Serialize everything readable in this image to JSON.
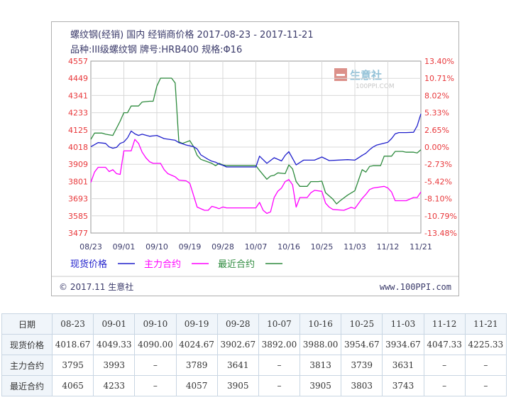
{
  "chart_data": {
    "type": "line",
    "title": "螺纹钢(经销) 国内 经销商价格 2017-08-23 - 2017-11-21",
    "subtitle": "品种:III级螺纹钢 牌号:HRB400 规格:Φ16",
    "watermark": {
      "name": "生意社",
      "url": "100PPI.COM"
    },
    "footer_left": "© 2017.11 生意社",
    "footer_right": "www.100PPI.com",
    "x_ticks": [
      "08/23",
      "09/01",
      "09/10",
      "09/19",
      "09/28",
      "10/07",
      "10/16",
      "10/25",
      "11/03",
      "11/12",
      "11/21"
    ],
    "y_left_ticks": [
      "4557",
      "4449",
      "4341",
      "4233",
      "4125",
      "4018",
      "3909",
      "3801",
      "3693",
      "3585",
      "3477"
    ],
    "y_right_ticks": [
      "13.40%",
      "10.71%",
      "8.02%",
      "5.33%",
      "2.65%",
      "0.00%",
      "-2.73%",
      "-5.42%",
      "-8.10%",
      "-10.79%",
      "-13.48%"
    ],
    "ylim": [
      3477,
      4557
    ],
    "xlim": [
      "2017-08-23",
      "2017-11-21"
    ],
    "grid": true,
    "legend": {
      "position": "bottom"
    },
    "colors": {
      "spot": "#2020cc",
      "main": "#ff00ff",
      "near": "#2e8b3e",
      "left_axis": "#e8373a",
      "right_axis": "#e8373a"
    },
    "series": [
      {
        "name": "现货价格",
        "color": "#2020cc",
        "points": [
          [
            "2017-08-23",
            4018.67
          ],
          [
            "2017-08-25",
            4045
          ],
          [
            "2017-08-27",
            4040
          ],
          [
            "2017-08-28",
            4018
          ],
          [
            "2017-08-29",
            4010
          ],
          [
            "2017-08-30",
            4015
          ],
          [
            "2017-08-31",
            4040
          ],
          [
            "2017-09-01",
            4049.33
          ],
          [
            "2017-09-02",
            4075
          ],
          [
            "2017-09-03",
            4118
          ],
          [
            "2017-09-04",
            4100
          ],
          [
            "2017-09-05",
            4090
          ],
          [
            "2017-09-06",
            4098
          ],
          [
            "2017-09-08",
            4085
          ],
          [
            "2017-09-10",
            4090
          ],
          [
            "2017-09-12",
            4070
          ],
          [
            "2017-09-15",
            4060
          ],
          [
            "2017-09-16",
            4045
          ],
          [
            "2017-09-18",
            4030
          ],
          [
            "2017-09-19",
            4024.67
          ],
          [
            "2017-09-20",
            4020
          ],
          [
            "2017-09-21",
            4005
          ],
          [
            "2017-09-22",
            3968
          ],
          [
            "2017-09-24",
            3940
          ],
          [
            "2017-09-25",
            3928
          ],
          [
            "2017-09-26",
            3922
          ],
          [
            "2017-09-27",
            3910
          ],
          [
            "2017-09-28",
            3902.67
          ],
          [
            "2017-09-29",
            3892
          ],
          [
            "2017-10-07",
            3892
          ],
          [
            "2017-10-08",
            3960
          ],
          [
            "2017-10-10",
            3915
          ],
          [
            "2017-10-12",
            3950
          ],
          [
            "2017-10-14",
            3930
          ],
          [
            "2017-10-15",
            3965
          ],
          [
            "2017-10-16",
            3988
          ],
          [
            "2017-10-18",
            3905
          ],
          [
            "2017-10-20",
            3935
          ],
          [
            "2017-10-23",
            3935
          ],
          [
            "2017-10-25",
            3954.67
          ],
          [
            "2017-10-27",
            3932
          ],
          [
            "2017-11-01",
            3938
          ],
          [
            "2017-11-03",
            3934.67
          ],
          [
            "2017-11-05",
            3965
          ],
          [
            "2017-11-06",
            3978
          ],
          [
            "2017-11-07",
            4000
          ],
          [
            "2017-11-08",
            4018
          ],
          [
            "2017-11-09",
            4030
          ],
          [
            "2017-11-12",
            4047.33
          ],
          [
            "2017-11-13",
            4070
          ],
          [
            "2017-11-14",
            4100
          ],
          [
            "2017-11-15",
            4108
          ],
          [
            "2017-11-17",
            4108
          ],
          [
            "2017-11-19",
            4110
          ],
          [
            "2017-11-20",
            4150
          ],
          [
            "2017-11-21",
            4225.33
          ]
        ]
      },
      {
        "name": "主力合约",
        "color": "#ff00ff",
        "points": [
          [
            "2017-08-23",
            3795
          ],
          [
            "2017-08-24",
            3860
          ],
          [
            "2017-08-25",
            3890
          ],
          [
            "2017-08-27",
            3890
          ],
          [
            "2017-08-28",
            3863
          ],
          [
            "2017-08-29",
            3875
          ],
          [
            "2017-08-30",
            3850
          ],
          [
            "2017-08-31",
            3845
          ],
          [
            "2017-09-01",
            3993
          ],
          [
            "2017-09-03",
            3993
          ],
          [
            "2017-09-04",
            4065
          ],
          [
            "2017-09-05",
            4040
          ],
          [
            "2017-09-06",
            3985
          ],
          [
            "2017-09-07",
            3950
          ],
          [
            "2017-09-08",
            3925
          ],
          [
            "2017-09-09",
            3915
          ],
          [
            "2017-09-11",
            3915
          ],
          [
            "2017-09-12",
            3875
          ],
          [
            "2017-09-13",
            3850
          ],
          [
            "2017-09-15",
            3830
          ],
          [
            "2017-09-16",
            3810
          ],
          [
            "2017-09-18",
            3805
          ],
          [
            "2017-09-19",
            3789
          ],
          [
            "2017-09-21",
            3640
          ],
          [
            "2017-09-23",
            3620
          ],
          [
            "2017-09-24",
            3620
          ],
          [
            "2017-09-25",
            3645
          ],
          [
            "2017-09-26",
            3638
          ],
          [
            "2017-09-27",
            3630
          ],
          [
            "2017-09-28",
            3641
          ],
          [
            "2017-09-29",
            3635
          ],
          [
            "2017-10-07",
            3635
          ],
          [
            "2017-10-08",
            3670
          ],
          [
            "2017-10-09",
            3620
          ],
          [
            "2017-10-10",
            3600
          ],
          [
            "2017-10-11",
            3610
          ],
          [
            "2017-10-12",
            3700
          ],
          [
            "2017-10-13",
            3740
          ],
          [
            "2017-10-14",
            3760
          ],
          [
            "2017-10-15",
            3800
          ],
          [
            "2017-10-16",
            3813
          ],
          [
            "2017-10-17",
            3780
          ],
          [
            "2017-10-18",
            3640
          ],
          [
            "2017-10-19",
            3700
          ],
          [
            "2017-10-21",
            3700
          ],
          [
            "2017-10-22",
            3730
          ],
          [
            "2017-10-23",
            3745
          ],
          [
            "2017-10-25",
            3739
          ],
          [
            "2017-10-26",
            3665
          ],
          [
            "2017-10-27",
            3640
          ],
          [
            "2017-10-28",
            3625
          ],
          [
            "2017-10-31",
            3620
          ],
          [
            "2017-11-02",
            3638
          ],
          [
            "2017-11-03",
            3631
          ],
          [
            "2017-11-05",
            3695
          ],
          [
            "2017-11-06",
            3720
          ],
          [
            "2017-11-07",
            3750
          ],
          [
            "2017-11-08",
            3760
          ],
          [
            "2017-11-11",
            3770
          ],
          [
            "2017-11-12",
            3760
          ],
          [
            "2017-11-13",
            3735
          ],
          [
            "2017-11-14",
            3680
          ],
          [
            "2017-11-17",
            3680
          ],
          [
            "2017-11-19",
            3700
          ],
          [
            "2017-11-20",
            3700
          ],
          [
            "2017-11-21",
            3735
          ]
        ]
      },
      {
        "name": "最近合约",
        "color": "#2e8b3e",
        "points": [
          [
            "2017-08-23",
            4065
          ],
          [
            "2017-08-24",
            4105
          ],
          [
            "2017-08-26",
            4105
          ],
          [
            "2017-08-27",
            4098
          ],
          [
            "2017-08-29",
            4090
          ],
          [
            "2017-08-31",
            4180
          ],
          [
            "2017-09-01",
            4233
          ],
          [
            "2017-09-02",
            4233
          ],
          [
            "2017-09-03",
            4275
          ],
          [
            "2017-09-05",
            4275
          ],
          [
            "2017-09-06",
            4300
          ],
          [
            "2017-09-08",
            4305
          ],
          [
            "2017-09-09",
            4305
          ],
          [
            "2017-09-10",
            4400
          ],
          [
            "2017-09-11",
            4450
          ],
          [
            "2017-09-14",
            4450
          ],
          [
            "2017-09-15",
            4420
          ],
          [
            "2017-09-16",
            4050
          ],
          [
            "2017-09-17",
            4040
          ],
          [
            "2017-09-19",
            4057
          ],
          [
            "2017-09-20",
            4020
          ],
          [
            "2017-09-21",
            3965
          ],
          [
            "2017-09-22",
            3940
          ],
          [
            "2017-09-25",
            3915
          ],
          [
            "2017-09-26",
            3900
          ],
          [
            "2017-09-27",
            3915
          ],
          [
            "2017-09-28",
            3905
          ],
          [
            "2017-09-29",
            3900
          ],
          [
            "2017-10-07",
            3900
          ],
          [
            "2017-10-08",
            3870
          ],
          [
            "2017-10-10",
            3815
          ],
          [
            "2017-10-11",
            3835
          ],
          [
            "2017-10-12",
            3840
          ],
          [
            "2017-10-13",
            3855
          ],
          [
            "2017-10-15",
            3850
          ],
          [
            "2017-10-16",
            3905
          ],
          [
            "2017-10-17",
            3880
          ],
          [
            "2017-10-18",
            3800
          ],
          [
            "2017-10-19",
            3770
          ],
          [
            "2017-10-21",
            3770
          ],
          [
            "2017-10-22",
            3800
          ],
          [
            "2017-10-24",
            3800
          ],
          [
            "2017-10-25",
            3803
          ],
          [
            "2017-10-26",
            3730
          ],
          [
            "2017-10-28",
            3690
          ],
          [
            "2017-10-29",
            3660
          ],
          [
            "2017-10-30",
            3680
          ],
          [
            "2017-11-01",
            3715
          ],
          [
            "2017-11-03",
            3743
          ],
          [
            "2017-11-04",
            3810
          ],
          [
            "2017-11-05",
            3875
          ],
          [
            "2017-11-06",
            3860
          ],
          [
            "2017-11-07",
            3895
          ],
          [
            "2017-11-08",
            3900
          ],
          [
            "2017-11-10",
            3900
          ],
          [
            "2017-11-11",
            3960
          ],
          [
            "2017-11-13",
            3960
          ],
          [
            "2017-11-14",
            3990
          ],
          [
            "2017-11-16",
            3990
          ],
          [
            "2017-11-17",
            3985
          ],
          [
            "2017-11-19",
            3985
          ],
          [
            "2017-11-20",
            3980
          ],
          [
            "2017-11-21",
            4000
          ]
        ]
      }
    ]
  },
  "table": {
    "header": [
      "日期",
      "08-23",
      "09-01",
      "09-10",
      "09-19",
      "09-28",
      "10-07",
      "10-16",
      "10-25",
      "11-03",
      "11-12",
      "11-21"
    ],
    "rows": [
      [
        "现货价格",
        "4018.67",
        "4049.33",
        "4090.00",
        "4024.67",
        "3902.67",
        "3892.00",
        "3988.00",
        "3954.67",
        "3934.67",
        "4047.33",
        "4225.33"
      ],
      [
        "主力合约",
        "3795",
        "3993",
        "–",
        "3789",
        "3641",
        "–",
        "3813",
        "3739",
        "3631",
        "–",
        "–"
      ],
      [
        "最近合约",
        "4065",
        "4233",
        "–",
        "4057",
        "3905",
        "–",
        "3905",
        "3803",
        "3743",
        "–",
        "–"
      ]
    ]
  }
}
